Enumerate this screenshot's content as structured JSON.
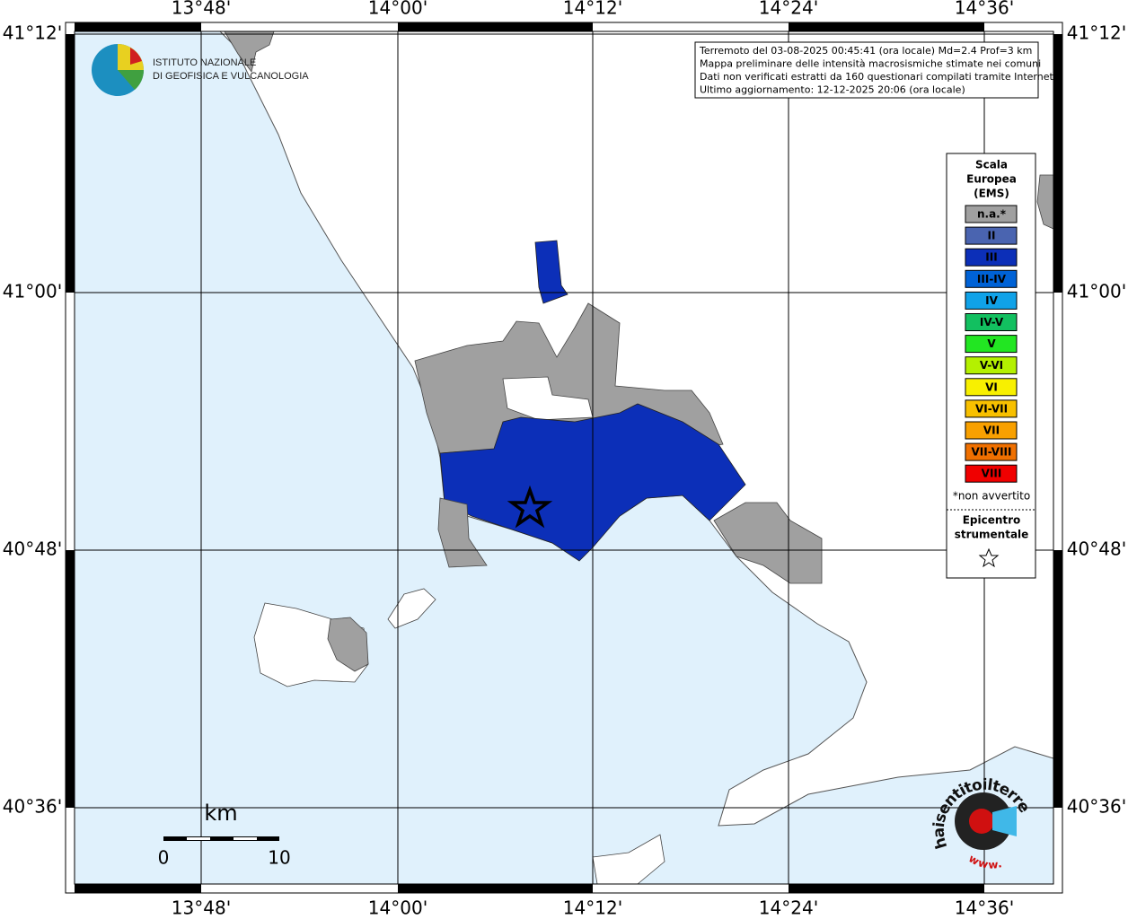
{
  "map": {
    "longitude_labels": [
      "13°48'",
      "14°00'",
      "14°12'",
      "14°24'",
      "14°36'"
    ],
    "latitude_labels": [
      "41°12'",
      "41°00'",
      "40°48'",
      "40°36'"
    ],
    "logo": {
      "lines": [
        "ISTITUTO NAZIONALE",
        "DI GEOFISICA E VULCANOLOGIA"
      ]
    },
    "info": [
      "Terremoto del 03-08-2025 00:45:41 (ora locale) Md=2.4 Prof=3 km",
      "Mappa preliminare delle intensità macrosismiche stimate nei comuni",
      "Dati non verificati estratti da 160 questionari compilati tramite Internet.",
      "Ultimo aggiornamento: 12-12-2025 20:06 (ora locale)"
    ],
    "legend": {
      "title": [
        "Scala",
        "Europea",
        "(EMS)"
      ],
      "items": [
        {
          "label": "n.a.*",
          "color": "#a0a0a0"
        },
        {
          "label": "II",
          "color": "#4a64b0"
        },
        {
          "label": "III",
          "color": "#0c2fb8"
        },
        {
          "label": "III-IV",
          "color": "#0062d6"
        },
        {
          "label": "IV",
          "color": "#10a2e8"
        },
        {
          "label": "IV-V",
          "color": "#12c060"
        },
        {
          "label": "V",
          "color": "#22e622"
        },
        {
          "label": "V-VI",
          "color": "#b4f000"
        },
        {
          "label": "VI",
          "color": "#f8f000"
        },
        {
          "label": "VI-VII",
          "color": "#f8c000"
        },
        {
          "label": "VII",
          "color": "#f8a000"
        },
        {
          "label": "VII-VIII",
          "color": "#f07000"
        },
        {
          "label": "VIII",
          "color": "#f00000"
        }
      ],
      "note": "*non avvertito",
      "epicenter": [
        "Epicentro",
        "strumentale"
      ]
    },
    "scale_bar": {
      "unit": "km",
      "labels": [
        "0",
        "10"
      ]
    },
    "badge": {
      "site": "haisentitoilterremoto.it",
      "www": "www."
    }
  }
}
